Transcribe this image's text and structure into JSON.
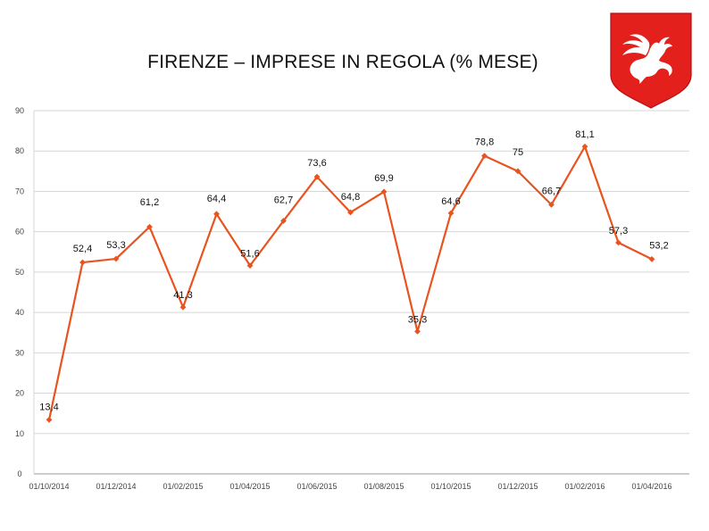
{
  "page": {
    "title": "FIRENZE – IMPRESE IN REGOLA (% MESE)"
  },
  "logo": {
    "name": "regione-toscana-pegasus-logo",
    "color": "#e3201b"
  },
  "colors": {
    "series": "#e8541f",
    "grid": "#d7d7d7",
    "axis_text": "#444444",
    "label_text": "#111111"
  },
  "chart_data": {
    "type": "line",
    "title": "FIRENZE – IMPRESE IN REGOLA (% MESE)",
    "xlabel": "",
    "ylabel": "",
    "ylim": [
      0,
      90
    ],
    "yticks": [
      0,
      10,
      20,
      30,
      40,
      50,
      60,
      70,
      80,
      90
    ],
    "grid": true,
    "legend": "none",
    "xtick_labels": [
      "01/10/2014",
      "01/12/2014",
      "01/02/2015",
      "01/04/2015",
      "01/06/2015",
      "01/08/2015",
      "01/10/2015",
      "01/12/2015",
      "01/02/2016",
      "01/04/2016"
    ],
    "series": [
      {
        "name": "",
        "x": [
          "01/10/2014",
          "01/11/2014",
          "01/12/2014",
          "01/01/2015",
          "01/02/2015",
          "01/03/2015",
          "01/04/2015",
          "01/05/2015",
          "01/06/2015",
          "01/07/2015",
          "01/08/2015",
          "01/09/2015",
          "01/10/2015",
          "01/11/2015",
          "01/12/2015",
          "01/01/2016",
          "01/02/2016",
          "01/03/2016",
          "01/04/2016"
        ],
        "values": [
          13.4,
          52.4,
          53.3,
          61.2,
          41.3,
          64.4,
          51.6,
          62.7,
          73.6,
          64.8,
          69.9,
          35.3,
          64.6,
          78.8,
          75,
          66.7,
          81.1,
          57.3,
          53.2
        ],
        "data_labels": [
          "13,4",
          "52,4",
          "53,3",
          "61,2",
          "41,3",
          "64,4",
          "51,6",
          "62,7",
          "73,6",
          "64,8",
          "69,9",
          "35,3",
          "64,6",
          "78,8",
          "75",
          "66,7",
          "81,1",
          "57,3",
          "53,2"
        ]
      }
    ]
  }
}
